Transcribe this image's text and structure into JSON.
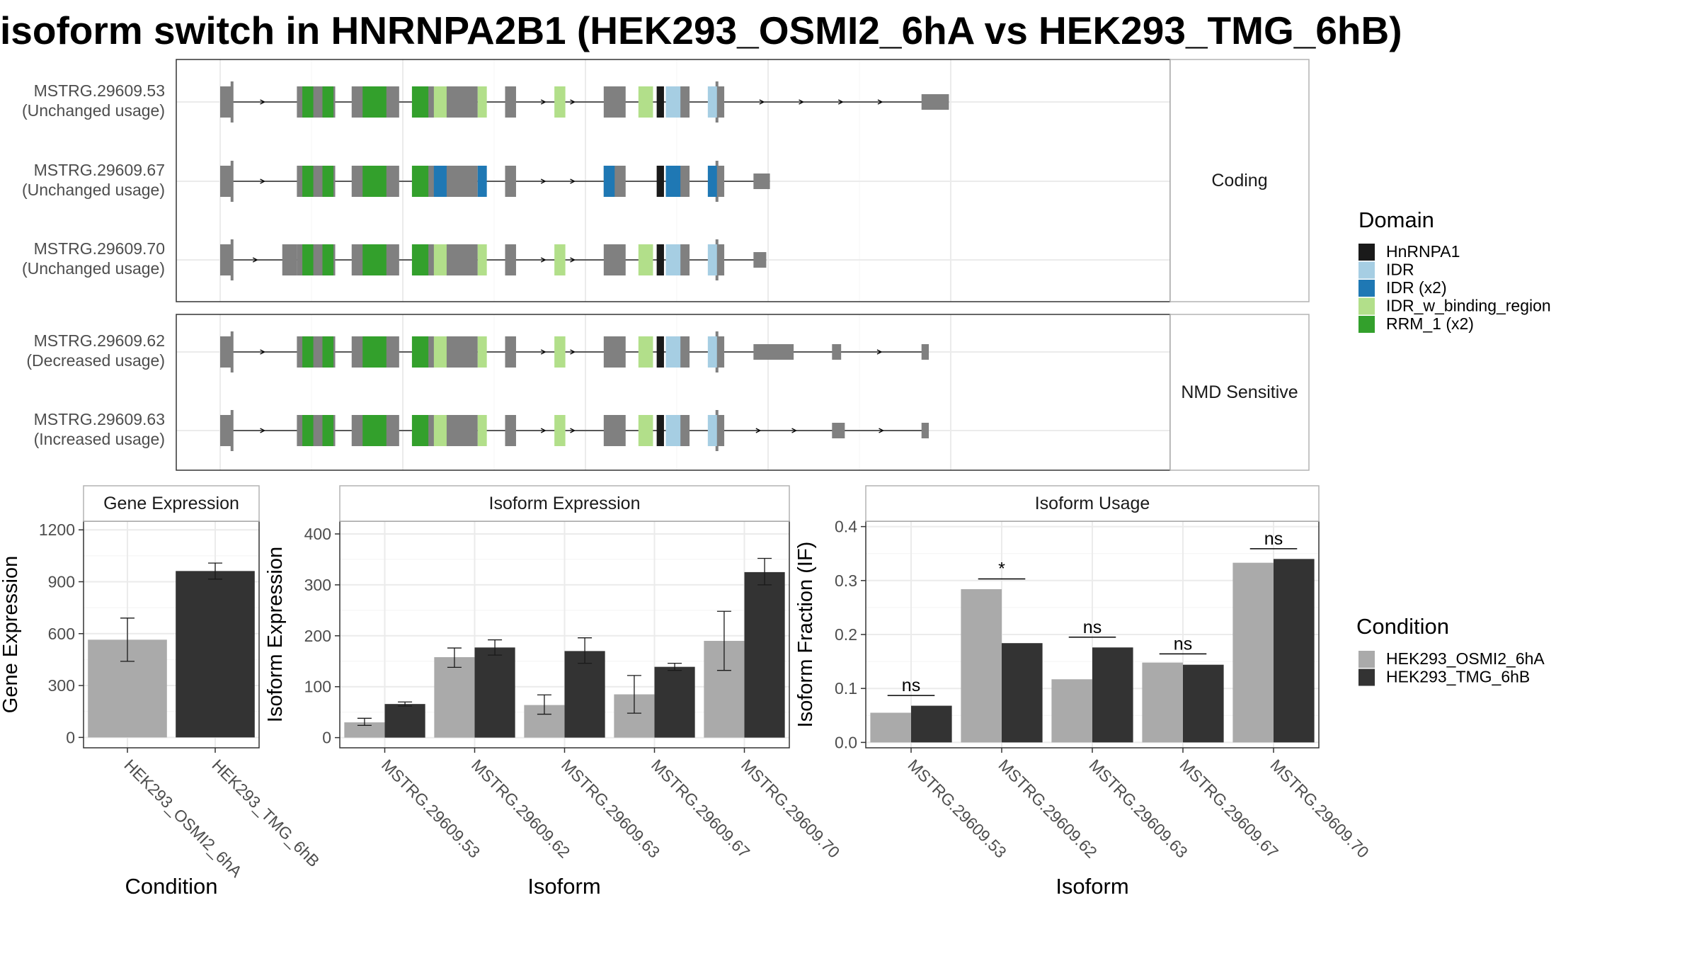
{
  "title": "isoform switch in HNRNPA2B1 (HEK293_OSMI2_6hA vs HEK293_TMG_6hB)",
  "colors": {
    "exon": "#808080",
    "HnRNPA1": "#1a1a1a",
    "IDR": "#a6cee3",
    "IDR (x2)": "#1f78b4",
    "IDR_w_binding_region": "#b2df8a",
    "RRM_1 (x2)": "#33a02c",
    "cond1": "#aaaaaa",
    "cond2": "#333333"
  },
  "domain_legend": {
    "title": "Domain",
    "entries": [
      {
        "label": "HnRNPA1",
        "key": "HnRNPA1"
      },
      {
        "label": "IDR",
        "key": "IDR"
      },
      {
        "label": "IDR (x2)",
        "key": "IDR (x2)"
      },
      {
        "label": "IDR_w_binding_region",
        "key": "IDR_w_binding_region"
      },
      {
        "label": "RRM_1 (x2)",
        "key": "RRM_1 (x2)"
      }
    ]
  },
  "condition_legend": {
    "title": "Condition",
    "entries": [
      {
        "label": "HEK293_OSMI2_6hA",
        "key": "cond1"
      },
      {
        "label": "HEK293_TMG_6hB",
        "key": "cond2"
      }
    ]
  },
  "structure": {
    "panels": [
      {
        "strip": "Coding",
        "transcripts": [
          {
            "id": "MSTRG.29609.53",
            "usage": "(Unchanged usage)",
            "exons": [
              [
                0,
                0.65,
                "big"
              ],
              [
                4.2,
                6.3,
                "big"
              ],
              [
                7.2,
                9.8,
                "big"
              ],
              [
                11.2,
                14.1,
                "big"
              ],
              [
                15.6,
                16.2,
                "big"
              ],
              [
                21,
                22.2,
                "big"
              ],
              [
                24.4,
                25.7,
                "big"
              ],
              [
                27.2,
                27.6,
                "big"
              ],
              [
                38.4,
                39.9,
                "small"
              ]
            ],
            "domains": [
              [
                4.5,
                5.1,
                "RRM_1 (x2)"
              ],
              [
                5.6,
                6.2,
                "RRM_1 (x2)"
              ],
              [
                7.8,
                9.1,
                "RRM_1 (x2)"
              ],
              [
                10.5,
                11.4,
                "RRM_1 (x2)"
              ],
              [
                11.7,
                12.4,
                "IDR_w_binding_region"
              ],
              [
                14.1,
                14.6,
                "IDR_w_binding_region"
              ],
              [
                18.3,
                18.9,
                "IDR_w_binding_region"
              ],
              [
                22.9,
                23.7,
                "IDR_w_binding_region"
              ],
              [
                23.9,
                24.3,
                "HnRNPA1"
              ],
              [
                24.4,
                25.2,
                "IDR"
              ],
              [
                26.7,
                27.2,
                "IDR"
              ]
            ]
          },
          {
            "id": "MSTRG.29609.67",
            "usage": "(Unchanged usage)",
            "exons": [
              [
                0,
                0.65,
                "big"
              ],
              [
                4.2,
                6.3,
                "big"
              ],
              [
                7.2,
                9.8,
                "big"
              ],
              [
                11.2,
                14.1,
                "big"
              ],
              [
                15.6,
                16.2,
                "big"
              ],
              [
                21,
                22.2,
                "big"
              ],
              [
                24.4,
                25.7,
                "big"
              ],
              [
                27.2,
                27.6,
                "big"
              ],
              [
                29.2,
                30.1,
                "small"
              ]
            ],
            "domains": [
              [
                4.5,
                5.1,
                "RRM_1 (x2)"
              ],
              [
                5.6,
                6.2,
                "RRM_1 (x2)"
              ],
              [
                7.8,
                9.1,
                "RRM_1 (x2)"
              ],
              [
                10.5,
                11.4,
                "RRM_1 (x2)"
              ],
              [
                11.7,
                12.4,
                "IDR (x2)"
              ],
              [
                14.1,
                14.6,
                "IDR (x2)"
              ],
              [
                21,
                21.6,
                "IDR (x2)"
              ],
              [
                23.9,
                24.3,
                "HnRNPA1"
              ],
              [
                24.4,
                25.2,
                "IDR (x2)"
              ],
              [
                26.7,
                27.2,
                "IDR (x2)"
              ]
            ]
          },
          {
            "id": "MSTRG.29609.70",
            "usage": "(Unchanged usage)",
            "exons": [
              [
                0,
                0.65,
                "big"
              ],
              [
                3.4,
                4.2,
                "big"
              ],
              [
                4.2,
                6.3,
                "big"
              ],
              [
                7.2,
                9.8,
                "big"
              ],
              [
                11.2,
                14.1,
                "big"
              ],
              [
                15.6,
                16.2,
                "big"
              ],
              [
                21,
                22.2,
                "big"
              ],
              [
                24.4,
                25.7,
                "big"
              ],
              [
                27.2,
                27.6,
                "big"
              ],
              [
                29.2,
                29.9,
                "small"
              ]
            ],
            "domains": [
              [
                4.5,
                5.1,
                "RRM_1 (x2)"
              ],
              [
                5.6,
                6.2,
                "RRM_1 (x2)"
              ],
              [
                7.8,
                9.1,
                "RRM_1 (x2)"
              ],
              [
                10.5,
                11.4,
                "RRM_1 (x2)"
              ],
              [
                11.7,
                12.4,
                "IDR_w_binding_region"
              ],
              [
                14.1,
                14.6,
                "IDR_w_binding_region"
              ],
              [
                18.3,
                18.9,
                "IDR_w_binding_region"
              ],
              [
                22.9,
                23.7,
                "IDR_w_binding_region"
              ],
              [
                23.9,
                24.3,
                "HnRNPA1"
              ],
              [
                24.4,
                25.2,
                "IDR"
              ],
              [
                26.7,
                27.2,
                "IDR"
              ]
            ]
          }
        ]
      },
      {
        "strip": "NMD Sensitive",
        "transcripts": [
          {
            "id": "MSTRG.29609.62",
            "usage": "(Decreased usage)",
            "exons": [
              [
                0,
                0.65,
                "big"
              ],
              [
                4.2,
                6.3,
                "big"
              ],
              [
                7.2,
                9.8,
                "big"
              ],
              [
                11.2,
                14.1,
                "big"
              ],
              [
                15.6,
                16.2,
                "big"
              ],
              [
                21,
                22.2,
                "big"
              ],
              [
                24.4,
                25.7,
                "big"
              ],
              [
                27.2,
                27.6,
                "big"
              ],
              [
                29.2,
                31.4,
                "small"
              ],
              [
                33.5,
                34,
                "small"
              ],
              [
                38.4,
                38.8,
                "small"
              ]
            ],
            "domains": [
              [
                4.5,
                5.1,
                "RRM_1 (x2)"
              ],
              [
                5.6,
                6.2,
                "RRM_1 (x2)"
              ],
              [
                7.8,
                9.1,
                "RRM_1 (x2)"
              ],
              [
                10.5,
                11.4,
                "RRM_1 (x2)"
              ],
              [
                11.7,
                12.4,
                "IDR_w_binding_region"
              ],
              [
                14.1,
                14.6,
                "IDR_w_binding_region"
              ],
              [
                18.3,
                18.9,
                "IDR_w_binding_region"
              ],
              [
                22.9,
                23.7,
                "IDR_w_binding_region"
              ],
              [
                23.9,
                24.3,
                "HnRNPA1"
              ],
              [
                24.4,
                25.2,
                "IDR"
              ],
              [
                26.7,
                27.2,
                "IDR"
              ]
            ]
          },
          {
            "id": "MSTRG.29609.63",
            "usage": "(Increased usage)",
            "exons": [
              [
                0,
                0.65,
                "big"
              ],
              [
                4.2,
                6.3,
                "big"
              ],
              [
                7.2,
                9.8,
                "big"
              ],
              [
                11.2,
                14.1,
                "big"
              ],
              [
                15.6,
                16.2,
                "big"
              ],
              [
                21,
                22.2,
                "big"
              ],
              [
                24.4,
                25.7,
                "big"
              ],
              [
                27.2,
                27.6,
                "big"
              ],
              [
                33.5,
                34.2,
                "small"
              ],
              [
                38.4,
                38.8,
                "small"
              ]
            ],
            "domains": [
              [
                4.5,
                5.1,
                "RRM_1 (x2)"
              ],
              [
                5.6,
                6.2,
                "RRM_1 (x2)"
              ],
              [
                7.8,
                9.1,
                "RRM_1 (x2)"
              ],
              [
                10.5,
                11.4,
                "RRM_1 (x2)"
              ],
              [
                11.7,
                12.4,
                "IDR_w_binding_region"
              ],
              [
                14.1,
                14.6,
                "IDR_w_binding_region"
              ],
              [
                18.3,
                18.9,
                "IDR_w_binding_region"
              ],
              [
                22.9,
                23.7,
                "IDR_w_binding_region"
              ],
              [
                23.9,
                24.3,
                "HnRNPA1"
              ],
              [
                24.4,
                25.2,
                "IDR"
              ],
              [
                26.7,
                27.2,
                "IDR"
              ]
            ]
          }
        ]
      }
    ]
  },
  "chart_data": [
    {
      "type": "bar",
      "title": "Gene Expression",
      "xlabel": "Condition",
      "ylabel": "Gene Expression",
      "categories": [
        "HEK293_OSMI2_6hA",
        "HEK293_TMG_6hB"
      ],
      "values": [
        565,
        962
      ],
      "errors": [
        [
          440,
          690
        ],
        [
          915,
          1008
        ]
      ],
      "ylim": [
        -60,
        1250
      ],
      "yticks": [
        "0",
        "300",
        "600",
        "900",
        "1200"
      ],
      "ytick_values": [
        0,
        300,
        600,
        900,
        1200
      ]
    },
    {
      "type": "bar",
      "title": "Isoform Expression",
      "xlabel": "Isoform",
      "ylabel": "Isoform Expression",
      "categories": [
        "MSTRG.29609.53",
        "MSTRG.29609.62",
        "MSTRG.29609.63",
        "MSTRG.29609.67",
        "MSTRG.29609.70"
      ],
      "series": [
        {
          "name": "HEK293_OSMI2_6hA",
          "values": [
            30,
            158,
            64,
            85,
            190
          ],
          "errors": [
            [
              24,
              38
            ],
            [
              138,
              176
            ],
            [
              46,
              84
            ],
            [
              48,
              122
            ],
            [
              132,
              248
            ]
          ]
        },
        {
          "name": "HEK293_TMG_6hB",
          "values": [
            66,
            177,
            170,
            139,
            325
          ],
          "errors": [
            [
              62,
              70
            ],
            [
              162,
              192
            ],
            [
              146,
              196
            ],
            [
              132,
              146
            ],
            [
              300,
              352
            ]
          ]
        }
      ],
      "ylim": [
        -20,
        425
      ],
      "yticks": [
        "0",
        "100",
        "200",
        "300",
        "400"
      ],
      "ytick_values": [
        0,
        100,
        200,
        300,
        400
      ]
    },
    {
      "type": "bar",
      "title": "Isoform Usage",
      "xlabel": "Isoform",
      "ylabel": "Isoform Fraction (IF)",
      "categories": [
        "MSTRG.29609.53",
        "MSTRG.29609.62",
        "MSTRG.29609.63",
        "MSTRG.29609.67",
        "MSTRG.29609.70"
      ],
      "series": [
        {
          "name": "HEK293_OSMI2_6hA",
          "values": [
            0.055,
            0.284,
            0.117,
            0.148,
            0.333
          ]
        },
        {
          "name": "HEK293_TMG_6hB",
          "values": [
            0.068,
            0.184,
            0.176,
            0.144,
            0.34
          ]
        }
      ],
      "significance": [
        "ns",
        "*",
        "ns",
        "ns",
        "ns"
      ],
      "sig_line_y": [
        0.087,
        0.303,
        0.195,
        0.164,
        0.359
      ],
      "ylim": [
        -0.01,
        0.41
      ],
      "yticks": [
        "0.0",
        "0.1",
        "0.2",
        "0.3",
        "0.4"
      ],
      "ytick_values": [
        0,
        0.1,
        0.2,
        0.3,
        0.4
      ]
    }
  ]
}
